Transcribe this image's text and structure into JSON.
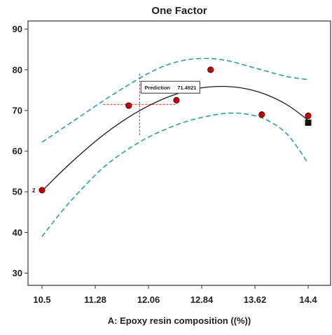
{
  "chart_data": {
    "type": "line",
    "title": "One Factor",
    "xlabel": "A: Epoxy resin composition ((%))",
    "ylabel": "",
    "xlim": [
      10.5,
      14.4
    ],
    "ylim": [
      27,
      92
    ],
    "x_ticks": [
      "10.5",
      "11.28",
      "12.06",
      "12.84",
      "13.62",
      "14.4"
    ],
    "y_ticks": [
      "30",
      "40",
      "50",
      "60",
      "70",
      "80",
      "90"
    ],
    "grid": false,
    "series": [
      {
        "role": "fitted",
        "color": "#1a1a1a",
        "points": [
          [
            10.5,
            50.2
          ],
          [
            10.8,
            55.2
          ],
          [
            11.1,
            59.8
          ],
          [
            11.4,
            64.0
          ],
          [
            11.7,
            67.6
          ],
          [
            12.0,
            70.6
          ],
          [
            12.3,
            73.0
          ],
          [
            12.6,
            74.7
          ],
          [
            12.9,
            75.7
          ],
          [
            13.2,
            75.9
          ],
          [
            13.5,
            75.3
          ],
          [
            13.8,
            73.8
          ],
          [
            14.1,
            71.3
          ],
          [
            14.4,
            67.6
          ]
        ]
      },
      {
        "role": "upper-band",
        "color": "#2aa0a0",
        "points": [
          [
            10.5,
            62.2
          ],
          [
            10.8,
            65.6
          ],
          [
            11.1,
            69.0
          ],
          [
            11.4,
            72.4
          ],
          [
            11.7,
            75.6
          ],
          [
            12.0,
            78.6
          ],
          [
            12.3,
            81.0
          ],
          [
            12.6,
            82.4
          ],
          [
            12.9,
            82.8
          ],
          [
            13.2,
            82.3
          ],
          [
            13.5,
            81.0
          ],
          [
            13.8,
            79.6
          ],
          [
            14.1,
            78.3
          ],
          [
            14.4,
            77.6
          ]
        ]
      },
      {
        "role": "lower-band",
        "color": "#2aa0a0",
        "points": [
          [
            10.5,
            39.0
          ],
          [
            10.8,
            45.4
          ],
          [
            11.1,
            51.0
          ],
          [
            11.4,
            56.0
          ],
          [
            11.7,
            59.8
          ],
          [
            12.0,
            62.9
          ],
          [
            12.3,
            65.3
          ],
          [
            12.6,
            67.2
          ],
          [
            12.9,
            68.5
          ],
          [
            13.2,
            69.3
          ],
          [
            13.5,
            69.1
          ],
          [
            13.8,
            67.6
          ],
          [
            14.1,
            64.0
          ],
          [
            14.4,
            57.0
          ]
        ]
      }
    ],
    "observed_points": [
      {
        "x": 10.5,
        "y": 50.4
      },
      {
        "x": 11.77,
        "y": 71.2
      },
      {
        "x": 12.47,
        "y": 72.5
      },
      {
        "x": 12.97,
        "y": 80.0
      },
      {
        "x": 13.72,
        "y": 69.0
      },
      {
        "x": 14.4,
        "y": 68.7
      }
    ],
    "point_color": "#c00000",
    "replicate_label": {
      "x": 10.5,
      "y": 50.4,
      "text": "2"
    },
    "design_point": {
      "x": 14.4,
      "y": 67.0,
      "color": "#111111"
    },
    "prediction": {
      "x": 11.93,
      "y": 71.4921,
      "label": "Prediction",
      "value": "71.4921",
      "crosshair_color": "#e02020"
    }
  }
}
